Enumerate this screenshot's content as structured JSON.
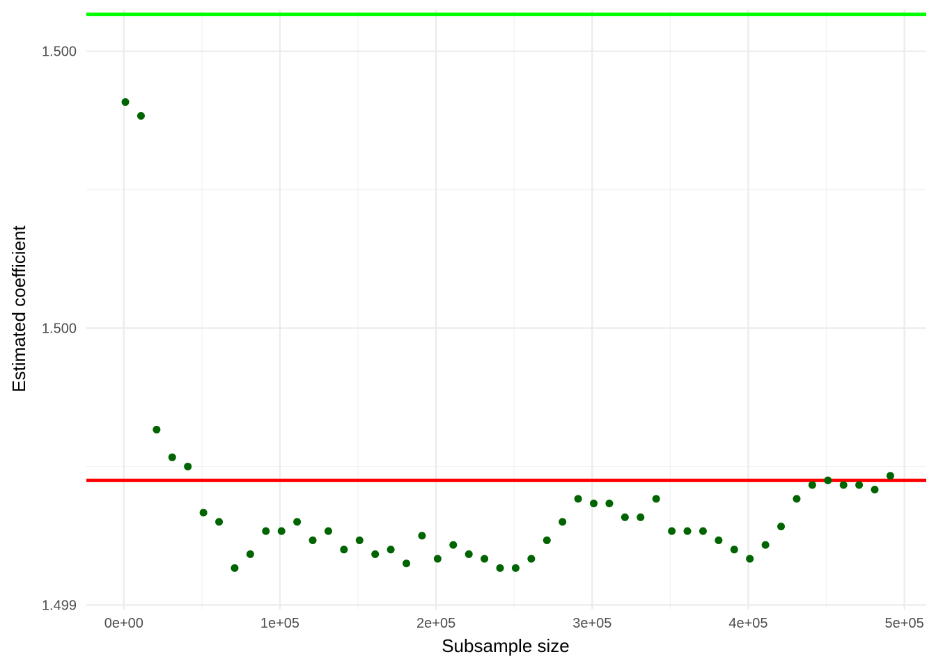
{
  "chart_data": {
    "type": "scatter",
    "title": "",
    "xlabel": "Subsample size",
    "ylabel": "Estimated coefficient",
    "xlim": [
      -24000,
      514000
    ],
    "ylim": [
      1.49899,
      1.50029
    ],
    "x_ticks": [
      {
        "value": 0,
        "label": "0e+00"
      },
      {
        "value": 100000,
        "label": "1e+05"
      },
      {
        "value": 200000,
        "label": "2e+05"
      },
      {
        "value": 300000,
        "label": "3e+05"
      },
      {
        "value": 400000,
        "label": "4e+05"
      },
      {
        "value": 500000,
        "label": "5e+05"
      }
    ],
    "y_ticks": [
      {
        "value": 1.499,
        "label": "1.499"
      },
      {
        "value": 1.4996,
        "label": "1.500"
      },
      {
        "value": 1.5002,
        "label": "1.500"
      },
      {
        "value": 1.5008,
        "label": "1.500"
      }
    ],
    "grid": true,
    "reference_lines": [
      {
        "y": 1.50028,
        "color": "#00ff00"
      },
      {
        "y": 1.49927,
        "color": "#ff0000"
      }
    ],
    "point_color": "#006400",
    "series": [
      {
        "x": [
          1000,
          11000,
          21000,
          31000,
          41000,
          51000,
          61000,
          71000,
          81000,
          91000,
          101000,
          111000,
          121000,
          131000,
          141000,
          151000,
          161000,
          171000,
          181000,
          191000,
          201000,
          211000,
          221000,
          231000,
          241000,
          251000,
          261000,
          271000,
          281000,
          291000,
          301000,
          311000,
          321000,
          331000,
          341000,
          351000,
          361000,
          371000,
          381000,
          391000,
          401000,
          411000,
          421000,
          431000,
          441000,
          451000,
          461000,
          471000,
          481000,
          491000
        ],
        "y": [
          1.50009,
          1.50006,
          1.49938,
          1.49932,
          1.4993,
          1.4992,
          1.49918,
          1.49908,
          1.49911,
          1.49916,
          1.49916,
          1.49918,
          1.49914,
          1.49916,
          1.49912,
          1.49914,
          1.49911,
          1.49912,
          1.49909,
          1.49915,
          1.4991,
          1.49913,
          1.49911,
          1.4991,
          1.49908,
          1.49908,
          1.4991,
          1.49914,
          1.49918,
          1.49923,
          1.49922,
          1.49922,
          1.49919,
          1.49919,
          1.49923,
          1.49916,
          1.49916,
          1.49916,
          1.49914,
          1.49912,
          1.4991,
          1.49913,
          1.49917,
          1.49923,
          1.49926,
          1.49927,
          1.49926,
          1.49926,
          1.49925,
          1.49928
        ]
      }
    ]
  }
}
